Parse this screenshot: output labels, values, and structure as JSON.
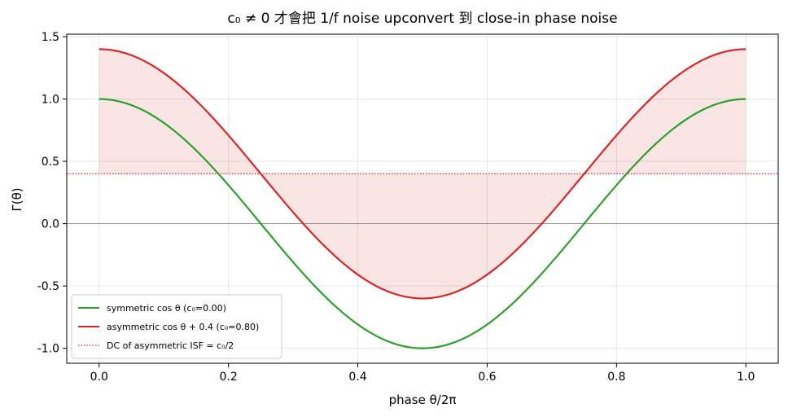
{
  "chart_data": {
    "type": "line",
    "title": "c₀ ≠ 0 才會把 1/f noise upconvert 到 close-in phase noise",
    "xlabel": "phase θ/2π",
    "ylabel": "Γ(θ)",
    "xlim": [
      -0.05,
      1.05
    ],
    "ylim": [
      -1.12,
      1.52
    ],
    "xticks": [
      0.0,
      0.2,
      0.4,
      0.6,
      0.8,
      1.0
    ],
    "xtick_labels": [
      "0.0",
      "0.2",
      "0.4",
      "0.6",
      "0.8",
      "1.0"
    ],
    "yticks": [
      -1.0,
      -0.5,
      0.0,
      0.5,
      1.0,
      1.5
    ],
    "ytick_labels": [
      "-1.0",
      "-0.5",
      "0.0",
      "0.5",
      "1.0",
      "1.5"
    ],
    "grid": true,
    "legend_position": "lower-left",
    "series": [
      {
        "name": "symmetric cos θ (c₀=0.00)",
        "color": "#2ca02c",
        "style": "solid",
        "function": "cos(2πx)",
        "x": [
          0.0,
          0.05,
          0.1,
          0.15,
          0.2,
          0.25,
          0.3,
          0.35,
          0.4,
          0.45,
          0.5,
          0.55,
          0.6,
          0.65,
          0.7,
          0.75,
          0.8,
          0.85,
          0.9,
          0.95,
          1.0
        ],
        "y": [
          1.0,
          0.951,
          0.809,
          0.588,
          0.309,
          0.0,
          -0.309,
          -0.588,
          -0.809,
          -0.951,
          -1.0,
          -0.951,
          -0.809,
          -0.588,
          -0.309,
          0.0,
          0.309,
          0.588,
          0.809,
          0.951,
          1.0
        ]
      },
      {
        "name": "asymmetric cos θ + 0.4 (c₀=0.80)",
        "color": "#d62728",
        "style": "solid",
        "fill_to": 0.4,
        "function": "cos(2πx) + 0.4",
        "x": [
          0.0,
          0.05,
          0.1,
          0.15,
          0.2,
          0.25,
          0.3,
          0.35,
          0.4,
          0.45,
          0.5,
          0.55,
          0.6,
          0.65,
          0.7,
          0.75,
          0.8,
          0.85,
          0.9,
          0.95,
          1.0
        ],
        "y": [
          1.4,
          1.351,
          1.209,
          0.988,
          0.709,
          0.4,
          0.091,
          -0.188,
          -0.409,
          -0.551,
          -0.6,
          -0.551,
          -0.409,
          -0.188,
          0.091,
          0.4,
          0.709,
          0.988,
          1.209,
          1.351,
          1.4
        ]
      },
      {
        "name": "DC of asymmetric ISF = c₀/2",
        "color": "#d62728",
        "style": "dotted",
        "constant": 0.4
      }
    ],
    "reference_line": {
      "y": 0.0,
      "color": "#808080"
    },
    "colors": {
      "symmetric": "#2ca02c",
      "asymmetric": "#d62728",
      "fill": "#d62728",
      "grid": "#e6e6e6",
      "zero_line": "#808080"
    }
  }
}
